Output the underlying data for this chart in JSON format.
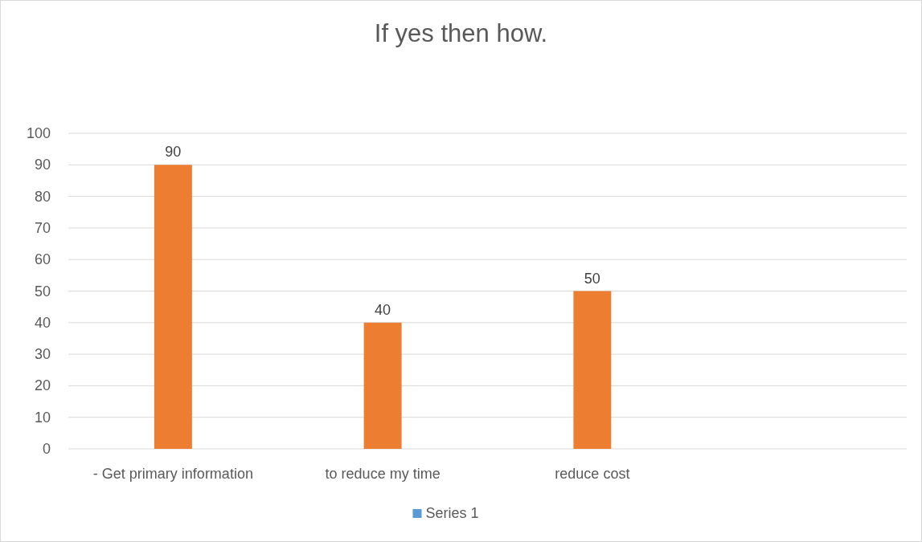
{
  "chart_data": {
    "type": "bar",
    "title": "If yes then how.",
    "categories": [
      "- Get primary information",
      "to reduce my time",
      "reduce cost",
      null
    ],
    "series": [
      {
        "name": "Series 1",
        "color": "#5b9bd5",
        "colors": [
          "#ed7d31",
          "#ed7d31",
          "#ed7d31",
          null
        ],
        "values": [
          90,
          40,
          50,
          null
        ]
      }
    ],
    "ylim": [
      0,
      100
    ],
    "yticks": [
      0,
      10,
      20,
      30,
      40,
      50,
      60,
      70,
      80,
      90,
      100
    ],
    "grid": "y",
    "legend": "bottom",
    "data_labels": true
  }
}
